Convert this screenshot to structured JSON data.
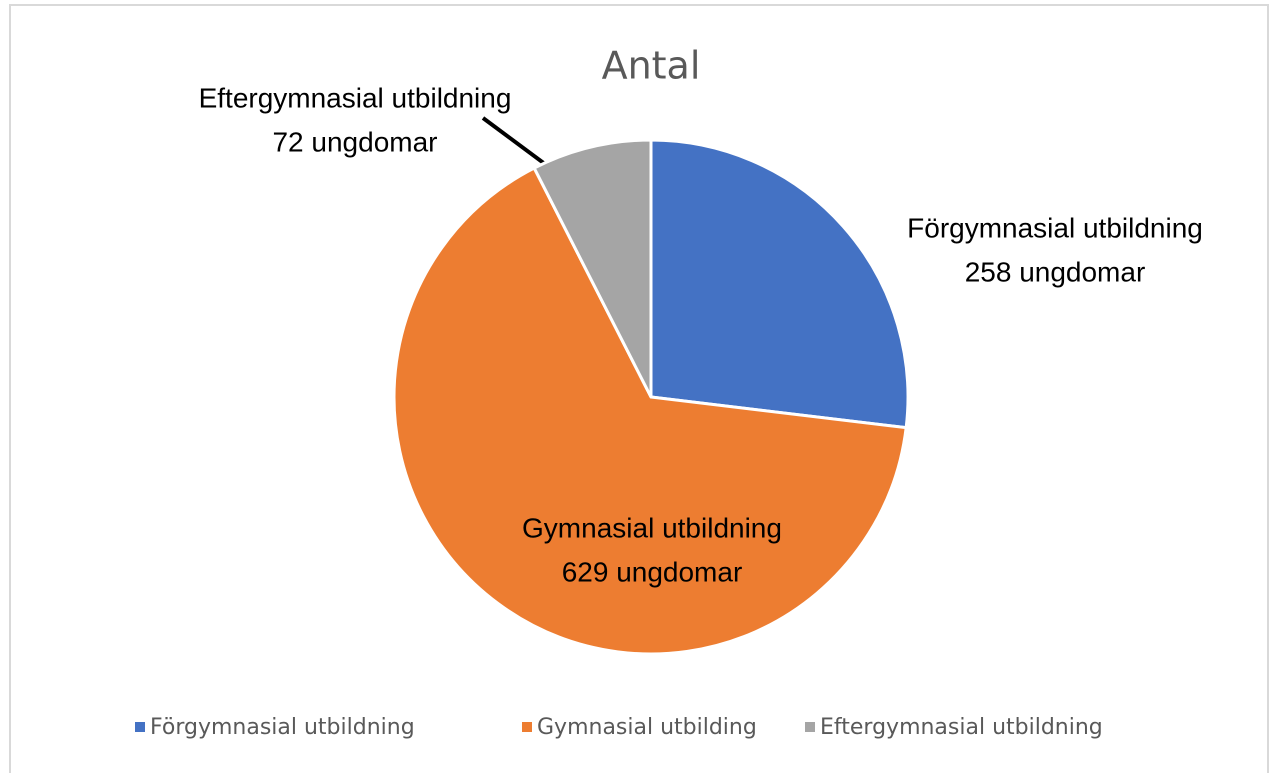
{
  "chart_data": {
    "type": "pie",
    "title": "Antal",
    "categories": [
      "Förgymnasial utbildning",
      "Gymnasial utbilding",
      "Eftergymnasial utbildning"
    ],
    "label_names": [
      "Förgymnasial utbildning",
      "Gymnasial utbildning",
      "Eftergymnasial utbildning"
    ],
    "values": [
      258,
      629,
      72
    ],
    "value_labels": [
      "258 ungdomar",
      "629 ungdomar",
      "72 ungdomar"
    ],
    "colors": [
      "#4472c4",
      "#ed7d31",
      "#a5a5a5"
    ],
    "legend": "bottom"
  }
}
